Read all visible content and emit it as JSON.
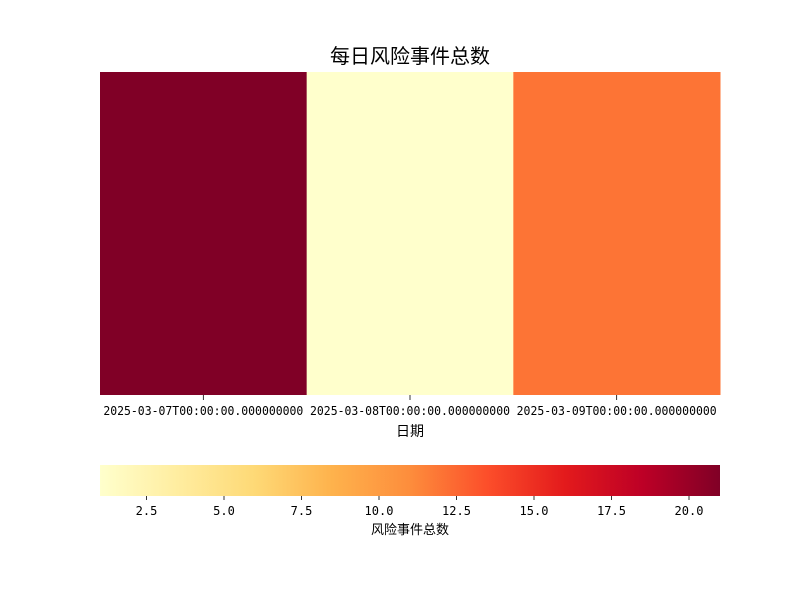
{
  "chart_data": {
    "type": "heatmap",
    "title": "每日风险事件总数",
    "xlabel": "日期",
    "ylabel": "",
    "categories": [
      "2025-03-07T00:00:00.000000000",
      "2025-03-08T00:00:00.000000000",
      "2025-03-09T00:00:00.000000000"
    ],
    "values": [
      21,
      1,
      12
    ],
    "colormap": "YlOrRd",
    "colorbar": {
      "label": "风险事件总数",
      "orientation": "horizontal",
      "range": [
        1,
        21
      ],
      "ticks": [
        2.5,
        5.0,
        7.5,
        10.0,
        12.5,
        15.0,
        17.5,
        20.0
      ],
      "tick_labels": [
        "2.5",
        "5.0",
        "7.5",
        "10.0",
        "12.5",
        "15.0",
        "17.5",
        "20.0"
      ]
    },
    "colors": {
      "stops": [
        "#ffffcc",
        "#ffeda0",
        "#fed976",
        "#feb24c",
        "#fd8d3c",
        "#fc4e2a",
        "#e31a1c",
        "#bd0026",
        "#800026"
      ]
    }
  }
}
